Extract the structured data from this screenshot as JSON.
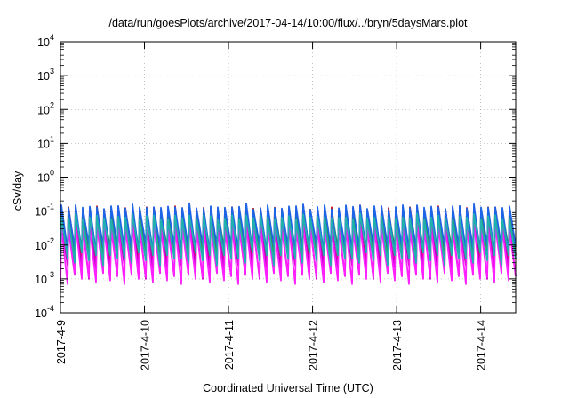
{
  "chart_data": {
    "type": "line",
    "title": "/data/run/goesPlots/archive/2017-04-14/10:00/flux/../bryn/5daysMars.plot",
    "xlabel": "Coordinated Universal Time (UTC)",
    "ylabel": "cSv/day",
    "yscale": "log",
    "ylim": [
      0.0001,
      10000
    ],
    "y_ticks": [
      {
        "base": "10",
        "exp": "4",
        "value": 10000
      },
      {
        "base": "10",
        "exp": "3",
        "value": 1000
      },
      {
        "base": "10",
        "exp": "2",
        "value": 100
      },
      {
        "base": "10",
        "exp": "1",
        "value": 10
      },
      {
        "base": "10",
        "exp": "0",
        "value": 1
      },
      {
        "base": "10",
        "exp": "-1",
        "value": 0.1
      },
      {
        "base": "10",
        "exp": "-2",
        "value": 0.01
      },
      {
        "base": "10",
        "exp": "-3",
        "value": 0.001
      },
      {
        "base": "10",
        "exp": "-4",
        "value": 0.0001
      }
    ],
    "x_ticks": [
      "2017-4-9",
      "2017-4-10",
      "2017-4-11",
      "2017-4-12",
      "2017-4-13",
      "2017-4-14"
    ],
    "xlim": [
      "2017-04-09 00:00",
      "2017-04-14 10:00"
    ],
    "grid": true,
    "reference_line": {
      "value": 0.1,
      "style": "dotted",
      "color": "#d40000"
    },
    "sawtooth_cycles": 64,
    "series": [
      {
        "color": "#d40000",
        "peaks": [
          0.13,
          0.12,
          0.14,
          0.11,
          0.12,
          0.13,
          0.12,
          0.11
        ],
        "troughs": [
          0.0035,
          0.006,
          0.004,
          0.007,
          0.003,
          0.005,
          0.004,
          0.006
        ]
      },
      {
        "color": "#2f9b3f",
        "peaks": [
          0.11,
          0.1,
          0.12,
          0.1,
          0.11,
          0.11,
          0.1,
          0.1
        ],
        "troughs": [
          0.004,
          0.007,
          0.005,
          0.008,
          0.0035,
          0.006,
          0.005,
          0.007
        ]
      },
      {
        "color": "#1e64e6",
        "peaks": [
          0.14,
          0.13,
          0.16,
          0.12,
          0.13,
          0.14,
          0.12,
          0.13
        ],
        "troughs": [
          0.006,
          0.009,
          0.007,
          0.01,
          0.005,
          0.008,
          0.006,
          0.009
        ]
      },
      {
        "color": "#c000c0",
        "peaks": [
          0.05,
          0.045,
          0.055,
          0.04,
          0.05,
          0.05,
          0.045,
          0.04
        ],
        "troughs": [
          0.0012,
          0.002,
          0.0015,
          0.0025,
          0.001,
          0.0018,
          0.0014,
          0.002
        ]
      },
      {
        "color": "#ff20ff",
        "peaks": [
          0.035,
          0.03,
          0.04,
          0.03,
          0.035,
          0.035,
          0.03,
          0.03
        ],
        "troughs": [
          0.0008,
          0.0012,
          0.001,
          0.0015,
          0.0007,
          0.0011,
          0.0009,
          0.0013
        ]
      },
      {
        "color": "#20b0b0",
        "peaks": [
          0.07,
          0.06,
          0.08,
          0.06,
          0.07,
          0.07,
          0.06,
          0.06
        ],
        "troughs": [
          0.003,
          0.005,
          0.004,
          0.006,
          0.0025,
          0.004,
          0.0035,
          0.005
        ]
      }
    ]
  }
}
